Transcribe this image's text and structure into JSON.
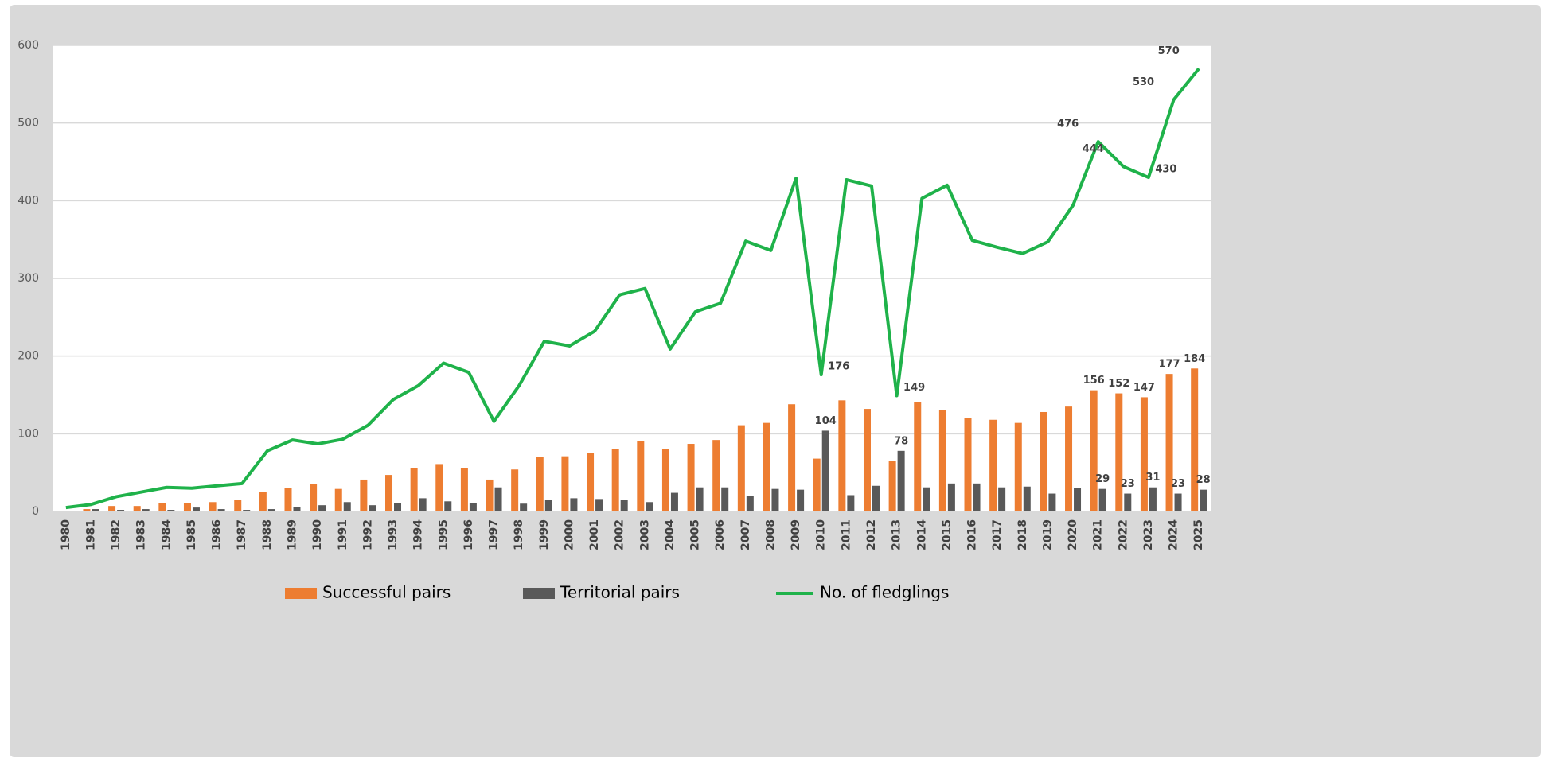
{
  "chart_data": {
    "type": "bar",
    "categories": [
      "1980",
      "1981",
      "1982",
      "1983",
      "1984",
      "1985",
      "1986",
      "1987",
      "1988",
      "1989",
      "1990",
      "1991",
      "1992",
      "1993",
      "1994",
      "1995",
      "1996",
      "1997",
      "1998",
      "1999",
      "2000",
      "2001",
      "2002",
      "2003",
      "2004",
      "2005",
      "2006",
      "2007",
      "2008",
      "2009",
      "2010",
      "2011",
      "2012",
      "2013",
      "2014",
      "2015",
      "2016",
      "2017",
      "2018",
      "2019",
      "2020",
      "2021",
      "2022",
      "2023",
      "2024",
      "2025"
    ],
    "series": [
      {
        "name": "Successful pairs",
        "type": "bar",
        "color": "#ed7d31",
        "values": [
          1,
          3,
          7,
          7,
          11,
          11,
          12,
          15,
          25,
          30,
          35,
          29,
          41,
          47,
          56,
          61,
          56,
          41,
          54,
          70,
          71,
          75,
          80,
          91,
          80,
          87,
          92,
          111,
          114,
          138,
          68,
          143,
          132,
          65,
          141,
          131,
          120,
          118,
          114,
          128,
          135,
          156,
          152,
          147,
          177,
          184
        ],
        "value_labels": [
          null,
          null,
          null,
          null,
          null,
          null,
          null,
          null,
          null,
          null,
          null,
          null,
          null,
          null,
          null,
          null,
          null,
          null,
          null,
          null,
          null,
          null,
          null,
          null,
          null,
          null,
          null,
          null,
          null,
          null,
          null,
          null,
          null,
          null,
          null,
          null,
          null,
          null,
          null,
          null,
          null,
          "156",
          "152",
          "147",
          "177",
          "184"
        ]
      },
      {
        "name": "Territorial pairs",
        "type": "bar",
        "color": "#595959",
        "values": [
          1,
          3,
          2,
          3,
          2,
          5,
          3,
          2,
          3,
          6,
          8,
          12,
          8,
          11,
          17,
          13,
          11,
          31,
          10,
          15,
          17,
          16,
          15,
          12,
          24,
          31,
          31,
          20,
          29,
          28,
          104,
          21,
          33,
          78,
          31,
          36,
          36,
          31,
          32,
          23,
          30,
          29,
          23,
          31,
          23,
          28
        ],
        "value_labels": [
          null,
          null,
          null,
          null,
          null,
          null,
          null,
          null,
          null,
          null,
          null,
          null,
          null,
          null,
          null,
          null,
          null,
          null,
          null,
          null,
          null,
          null,
          null,
          null,
          null,
          null,
          null,
          null,
          null,
          null,
          "104",
          null,
          null,
          "78",
          null,
          null,
          null,
          null,
          null,
          null,
          null,
          "29",
          "23",
          "31",
          "23",
          "28"
        ]
      },
      {
        "name": "No. of fledglings",
        "type": "line",
        "color": "#1fb24a",
        "values": [
          5,
          9,
          19,
          25,
          31,
          30,
          33,
          36,
          78,
          92,
          87,
          93,
          111,
          144,
          162,
          191,
          179,
          116,
          162,
          219,
          213,
          232,
          279,
          287,
          209,
          257,
          268,
          348,
          336,
          429,
          176,
          427,
          419,
          149,
          403,
          420,
          349,
          340,
          332,
          347,
          394,
          476,
          444,
          430,
          530,
          570
        ],
        "value_labels": [
          null,
          null,
          null,
          null,
          null,
          null,
          null,
          null,
          null,
          null,
          null,
          null,
          null,
          null,
          null,
          null,
          null,
          null,
          null,
          null,
          null,
          null,
          null,
          null,
          null,
          null,
          null,
          null,
          null,
          null,
          "176",
          null,
          null,
          "149",
          null,
          null,
          null,
          null,
          null,
          null,
          null,
          "476",
          "444",
          "430",
          "530",
          "570"
        ]
      }
    ],
    "ylim": [
      0,
      600
    ],
    "yticks": [
      0,
      100,
      200,
      300,
      400,
      500,
      600
    ],
    "grid": true,
    "legend": "bottom"
  }
}
